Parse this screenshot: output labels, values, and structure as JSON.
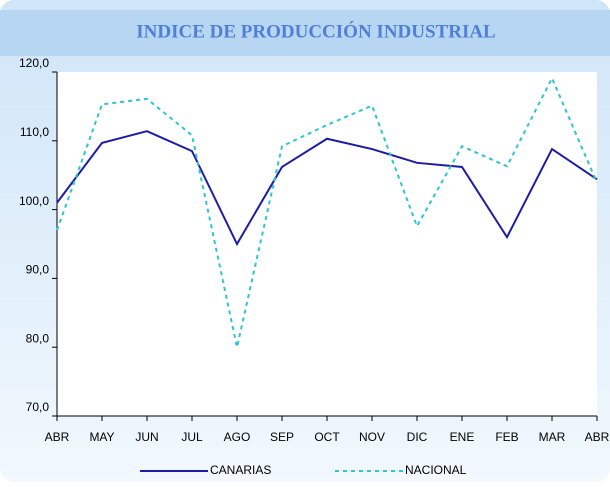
{
  "chart_data": {
    "type": "line",
    "title": "INDICE DE PRODUCCIÓN INDUSTRIAL",
    "categories": [
      "ABR",
      "MAY",
      "JUN",
      "JUL",
      "AGO",
      "SEP",
      "OCT",
      "NOV",
      "DIC",
      "ENE",
      "FEB",
      "MAR",
      "ABR"
    ],
    "series": [
      {
        "name": "CANARIAS",
        "color": "#1c1ca8",
        "dash": false,
        "values": [
          101.0,
          109.7,
          111.4,
          108.5,
          95.0,
          106.2,
          110.3,
          108.8,
          106.8,
          106.2,
          96.0,
          108.8,
          104.4
        ]
      },
      {
        "name": "NACIONAL",
        "color": "#2ec4d6",
        "dash": true,
        "values": [
          97.0,
          115.3,
          116.1,
          110.8,
          80.0,
          109.2,
          112.3,
          115.1,
          97.6,
          109.2,
          106.3,
          119.1,
          103.9
        ]
      }
    ],
    "ylim": [
      70,
      120
    ],
    "yticks": [
      {
        "value": 70,
        "label": "70,0"
      },
      {
        "value": 80,
        "label": "80,0"
      },
      {
        "value": 90,
        "label": "90,0"
      },
      {
        "value": 100,
        "label": "100,0"
      },
      {
        "value": 110,
        "label": "110,0"
      },
      {
        "value": 120,
        "label": "120,0"
      }
    ],
    "grid": false,
    "legend": "bottom"
  }
}
